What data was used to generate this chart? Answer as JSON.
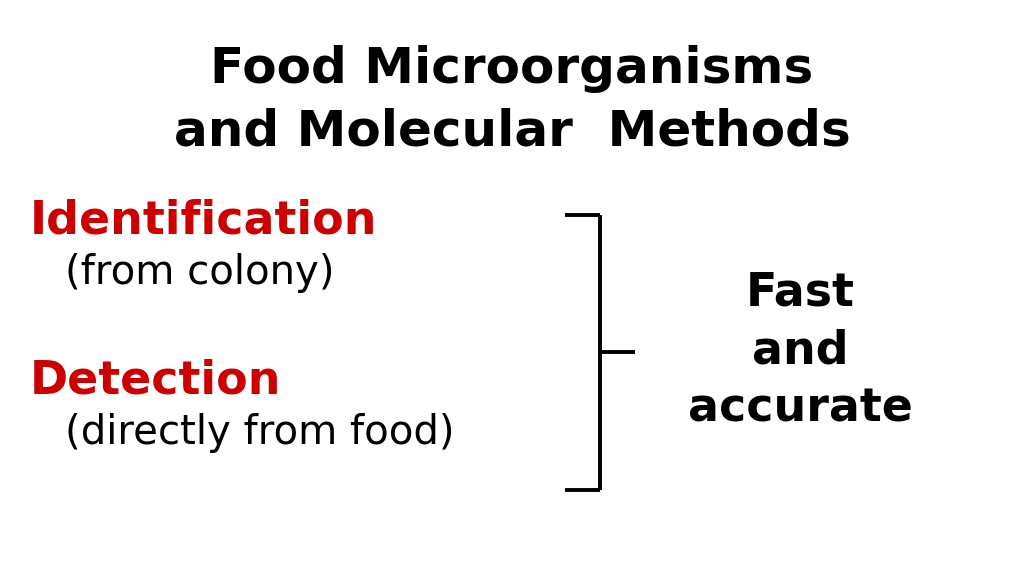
{
  "background_color": "#ffffff",
  "title_line1": "Food Microorganisms",
  "title_line2": "and Molecular  Methods",
  "title_color": "#000000",
  "title_fontsize": 36,
  "title_fontweight": "bold",
  "label1_text": "Identification",
  "label1_color": "#cc0000",
  "label1_fontsize": 33,
  "label1_fontweight": "bold",
  "sublabel1_text": "(from colony)",
  "sublabel1_color": "#000000",
  "sublabel1_fontsize": 29,
  "label2_text": "Detection",
  "label2_color": "#cc0000",
  "label2_fontsize": 33,
  "label2_fontweight": "bold",
  "sublabel2_text": "(directly from food)",
  "sublabel2_color": "#000000",
  "sublabel2_fontsize": 29,
  "result_line1": "Fast",
  "result_line2": "and",
  "result_line3": "accurate",
  "result_color": "#000000",
  "result_fontsize": 33,
  "result_fontweight": "bold",
  "bracket_color": "#000000",
  "bracket_linewidth": 2.8,
  "fig_width": 10.24,
  "fig_height": 5.77,
  "dpi": 100
}
